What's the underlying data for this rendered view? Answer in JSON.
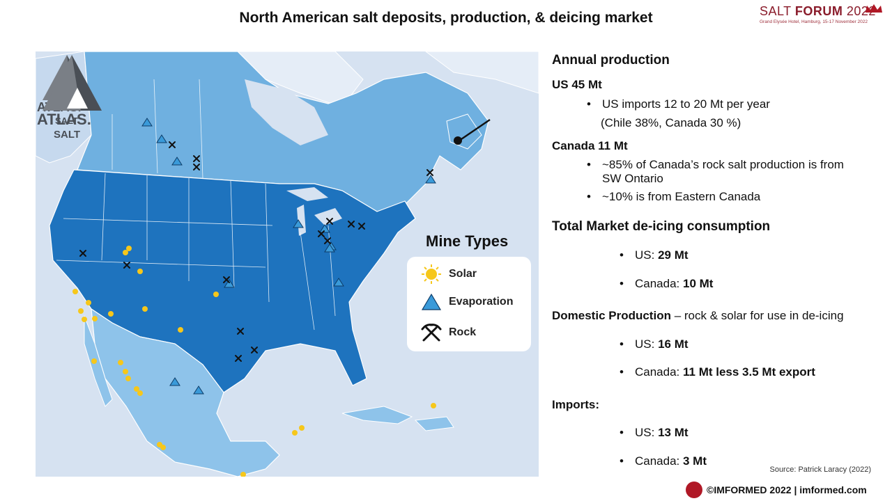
{
  "title": "North American salt deposits, production, & deicing market",
  "forum_logo": {
    "word1": "SALT ",
    "word2": "FORUM",
    "year": " 2022",
    "subtitle": "Grand Elysée Hotel, Hamburg, 15-17 November 2022"
  },
  "atlas_logo": {
    "name": "ATLAS.",
    "sub": "SALT"
  },
  "legend": {
    "title": "Mine Types",
    "items": [
      {
        "label": "Solar",
        "icon": "sun-icon",
        "color": "#f6c71b"
      },
      {
        "label": "Evaporation",
        "icon": "triangle-icon",
        "color": "#3a9ad9"
      },
      {
        "label": "Rock",
        "icon": "pickaxe-icon",
        "color": "#111111"
      }
    ]
  },
  "panel": {
    "annual_heading": "Annual production",
    "us_heading": "US 45 Mt",
    "us_bullet1": "US imports 12 to 20 Mt per year",
    "us_bullet1_cont": "(Chile 38%, Canada 30 %)",
    "canada_heading": "Canada 11 Mt",
    "canada_bullet1_l1": "~85% of Canada’s rock salt production is from",
    "canada_bullet1_l2": "SW Ontario",
    "canada_bullet2": "~10% is from Eastern Canada",
    "market_heading": "Total Market de-icing consumption",
    "market_us_label": "US: ",
    "market_us_value": "29 Mt",
    "market_ca_label": "Canada: ",
    "market_ca_value": "10 Mt",
    "domestic_heading": "Domestic Production",
    "domestic_rest": " – rock & solar for use in de-icing",
    "domestic_us_label": "US: ",
    "domestic_us_value": "16 Mt",
    "domestic_ca_label": "Canada: ",
    "domestic_ca_value": "11 Mt  less 3.5 Mt export",
    "imports_heading": "Imports:",
    "imports_us_label": "US: ",
    "imports_us_value": "13 Mt",
    "imports_ca_label": "Canada: ",
    "imports_ca_value": "3 Mt"
  },
  "source": "Source: Patrick Laracy (2022)",
  "footer": {
    "text": "©IMFORMED 2022  | imformed.com"
  },
  "colors": {
    "us_fill": "#1e73be",
    "canada_fill": "#6fb0e0",
    "mexico_fill": "#8ec3ea",
    "ocean": "#d6e2f1",
    "land_other": "#c8daec"
  }
}
